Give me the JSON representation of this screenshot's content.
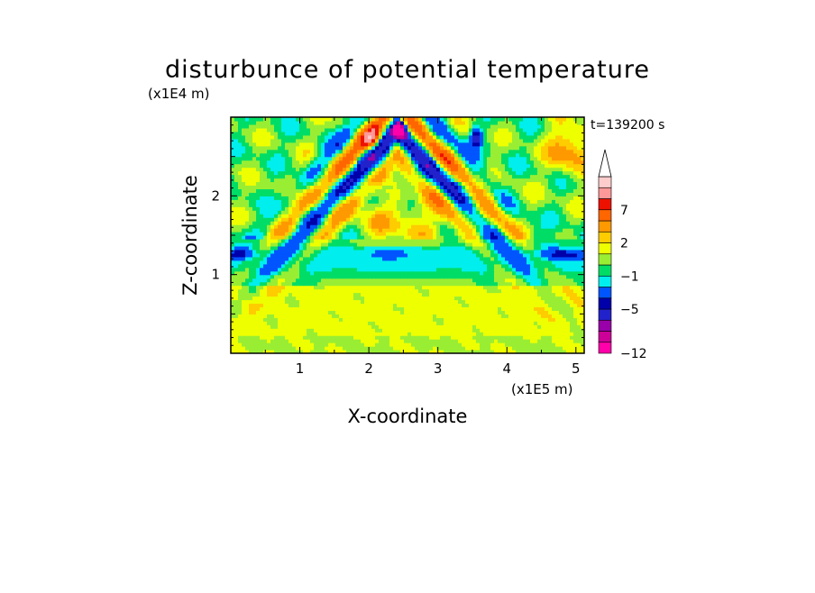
{
  "chart_data": {
    "type": "heatmap",
    "title": "disturbunce of potential temperature",
    "xlabel": "X-coordinate",
    "ylabel": "Z-coordinate",
    "x_unit": "(x1E5 m)",
    "y_unit": "(x1E4 m)",
    "time_label": "t=139200 s",
    "xlim": [
      0,
      5.12
    ],
    "ylim": [
      0,
      3.0
    ],
    "xticks": [
      "1",
      "2",
      "3",
      "4",
      "5"
    ],
    "yticks": [
      "1",
      "2"
    ],
    "colorbar": {
      "levels": [
        -12,
        -10,
        -8,
        -7,
        -5,
        -4,
        -2,
        -1,
        0,
        1,
        2,
        3,
        5,
        7,
        9,
        11
      ],
      "tick_labels": [
        "7",
        "2",
        "−1",
        "−5",
        "−12"
      ],
      "colors": [
        "#ff00aa",
        "#cc0099",
        "#9900aa",
        "#2222cc",
        "#0000aa",
        "#0055ff",
        "#00eeee",
        "#00dd66",
        "#99ee33",
        "#eeff00",
        "#ffcc00",
        "#ff9900",
        "#ff6600",
        "#ee1100",
        "#ff9999",
        "#ffcccc"
      ]
    }
  }
}
